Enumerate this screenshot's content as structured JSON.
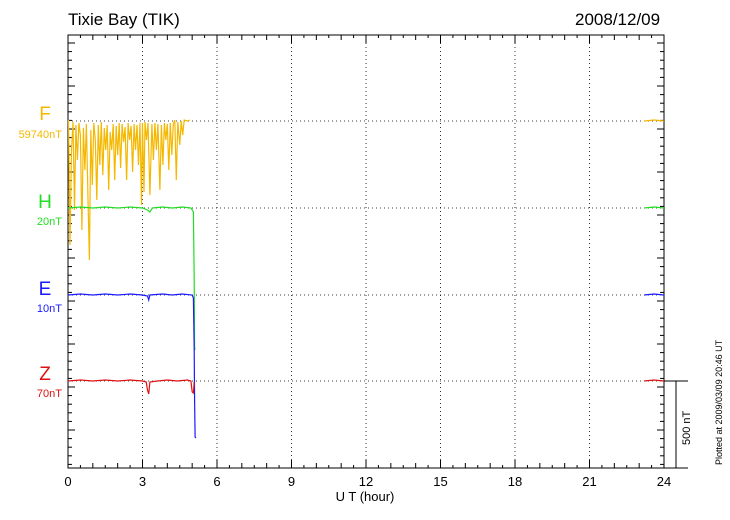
{
  "header": {
    "title": "Tixie Bay (TIK)",
    "date": "2008/12/09"
  },
  "side": {
    "plotted_note": "Plotted at 2009/03/09 20:46 UT",
    "scale_bar_label": "500 nT"
  },
  "chart_data": {
    "type": "line",
    "xlabel": "U T (hour)",
    "xlim": [
      0,
      24
    ],
    "xticks": [
      0,
      3,
      6,
      9,
      12,
      15,
      18,
      21,
      24
    ],
    "scale_bar_nT": 500,
    "series": [
      {
        "name": "F",
        "label": "F",
        "baseline_label": "59740nT",
        "color": "#f5b800",
        "values": [
          [
            0.02,
            120
          ],
          [
            0.08,
            245
          ],
          [
            0.14,
            150
          ],
          [
            0.2,
            122
          ],
          [
            0.26,
            210
          ],
          [
            0.32,
            125
          ],
          [
            0.38,
            160
          ],
          [
            0.44,
            123
          ],
          [
            0.5,
            135
          ],
          [
            0.56,
            230
          ],
          [
            0.62,
            128
          ],
          [
            0.68,
            170
          ],
          [
            0.74,
            124
          ],
          [
            0.8,
            195
          ],
          [
            0.86,
            260
          ],
          [
            0.92,
            130
          ],
          [
            0.98,
            185
          ],
          [
            1.04,
            123
          ],
          [
            1.1,
            140
          ],
          [
            1.16,
            200
          ],
          [
            1.22,
            125
          ],
          [
            1.28,
            165
          ],
          [
            1.34,
            122
          ],
          [
            1.4,
            175
          ],
          [
            1.46,
            128
          ],
          [
            1.52,
            150
          ],
          [
            1.58,
            125
          ],
          [
            1.64,
            190
          ],
          [
            1.7,
            132
          ],
          [
            1.76,
            150
          ],
          [
            1.82,
            124
          ],
          [
            1.88,
            180
          ],
          [
            1.94,
            126
          ],
          [
            2.0,
            155
          ],
          [
            2.06,
            123
          ],
          [
            2.12,
            168
          ],
          [
            2.18,
            124
          ],
          [
            2.24,
            142
          ],
          [
            2.3,
            127
          ],
          [
            2.36,
            180
          ],
          [
            2.42,
            123
          ],
          [
            2.48,
            140
          ],
          [
            2.54,
            126
          ],
          [
            2.6,
            172
          ],
          [
            2.66,
            124
          ],
          [
            2.72,
            150
          ],
          [
            2.78,
            125
          ],
          [
            2.84,
            165
          ],
          [
            2.9,
            123
          ],
          [
            2.96,
            205
          ],
          [
            3.0,
            123
          ],
          [
            3.06,
            192
          ],
          [
            3.1,
            122
          ],
          [
            3.16,
            140
          ],
          [
            3.22,
            123
          ],
          [
            3.3,
            195
          ],
          [
            3.38,
            124
          ],
          [
            3.44,
            160
          ],
          [
            3.5,
            123
          ],
          [
            3.56,
            150
          ],
          [
            3.62,
            124
          ],
          [
            3.7,
            190
          ],
          [
            3.76,
            125
          ],
          [
            3.82,
            165
          ],
          [
            3.88,
            123
          ],
          [
            3.94,
            140
          ],
          [
            4.0,
            124
          ],
          [
            4.06,
            170
          ],
          [
            4.12,
            123
          ],
          [
            4.18,
            155
          ],
          [
            4.24,
            124
          ],
          [
            4.3,
            120
          ],
          [
            4.36,
            180
          ],
          [
            4.42,
            122
          ],
          [
            4.5,
            145
          ],
          [
            4.56,
            121
          ],
          [
            4.62,
            135
          ],
          [
            4.68,
            120
          ],
          [
            4.8,
            121
          ],
          [
            4.9,
            120
          ],
          [
            23.2,
            121
          ],
          [
            23.6,
            120
          ],
          [
            24,
            121
          ]
        ]
      },
      {
        "name": "H",
        "label": "H",
        "baseline_label": "20nT",
        "color": "#22dd22",
        "values": [
          [
            0,
            208
          ],
          [
            0.5,
            207
          ],
          [
            1,
            208
          ],
          [
            1.5,
            207
          ],
          [
            2,
            208
          ],
          [
            2.5,
            207
          ],
          [
            3,
            208
          ],
          [
            3.2,
            210
          ],
          [
            3.3,
            212
          ],
          [
            3.4,
            208
          ],
          [
            3.8,
            207
          ],
          [
            4.2,
            208
          ],
          [
            4.6,
            207
          ],
          [
            4.95,
            208
          ],
          [
            5.0,
            210
          ],
          [
            5.05,
            212
          ],
          [
            5.08,
            280
          ],
          [
            5.1,
            350
          ],
          [
            5.12,
            348
          ],
          [
            23.2,
            208
          ],
          [
            23.6,
            207
          ],
          [
            24,
            208
          ]
        ]
      },
      {
        "name": "E",
        "label": "E",
        "baseline_label": "10nT",
        "color": "#1a1aff",
        "values": [
          [
            0,
            295
          ],
          [
            0.5,
            294
          ],
          [
            1,
            295
          ],
          [
            1.5,
            294
          ],
          [
            2,
            295
          ],
          [
            2.5,
            294
          ],
          [
            3,
            295
          ],
          [
            3.2,
            296
          ],
          [
            3.25,
            300
          ],
          [
            3.3,
            295
          ],
          [
            3.8,
            294
          ],
          [
            4.2,
            295
          ],
          [
            4.6,
            294
          ],
          [
            5.0,
            295
          ],
          [
            5.05,
            298
          ],
          [
            5.08,
            350
          ],
          [
            5.1,
            400
          ],
          [
            5.12,
            437
          ],
          [
            5.15,
            438
          ],
          [
            23.2,
            295
          ],
          [
            23.6,
            294
          ],
          [
            24,
            295
          ]
        ]
      },
      {
        "name": "Z",
        "label": "Z",
        "baseline_label": "70nT",
        "color": "#dd1111",
        "values": [
          [
            0,
            381
          ],
          [
            0.5,
            380
          ],
          [
            1,
            381
          ],
          [
            1.5,
            380
          ],
          [
            2,
            381
          ],
          [
            2.5,
            380
          ],
          [
            3,
            381
          ],
          [
            3.15,
            382
          ],
          [
            3.2,
            390
          ],
          [
            3.25,
            394
          ],
          [
            3.3,
            382
          ],
          [
            3.6,
            381
          ],
          [
            4.0,
            380
          ],
          [
            4.4,
            381
          ],
          [
            4.8,
            380
          ],
          [
            4.95,
            381
          ],
          [
            5.0,
            392
          ],
          [
            5.05,
            393
          ],
          [
            5.08,
            382
          ],
          [
            23.2,
            381
          ],
          [
            23.6,
            380
          ],
          [
            24,
            381
          ]
        ]
      }
    ]
  }
}
